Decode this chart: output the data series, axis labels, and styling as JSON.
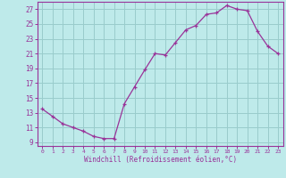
{
  "x": [
    0,
    1,
    2,
    3,
    4,
    5,
    6,
    7,
    8,
    9,
    10,
    11,
    12,
    13,
    14,
    15,
    16,
    17,
    18,
    19,
    20,
    21,
    22,
    23
  ],
  "y": [
    13.5,
    12.5,
    11.5,
    11.0,
    10.5,
    9.8,
    9.5,
    9.5,
    14.2,
    16.5,
    18.8,
    21.0,
    20.8,
    22.5,
    24.2,
    24.8,
    26.3,
    26.5,
    27.5,
    27.0,
    26.8,
    24.0,
    22.0,
    21.0
  ],
  "line_color": "#993399",
  "marker": "+",
  "bg_color": "#beeaea",
  "grid_color": "#99cccc",
  "axis_color": "#993399",
  "tick_label_color": "#993399",
  "xlabel": "Windchill (Refroidissement éolien,°C)",
  "ylabel_ticks": [
    9,
    11,
    13,
    15,
    17,
    19,
    21,
    23,
    25,
    27
  ],
  "xlim": [
    -0.5,
    23.5
  ],
  "ylim": [
    8.5,
    28.0
  ],
  "xticks": [
    0,
    1,
    2,
    3,
    4,
    5,
    6,
    7,
    8,
    9,
    10,
    11,
    12,
    13,
    14,
    15,
    16,
    17,
    18,
    19,
    20,
    21,
    22,
    23
  ]
}
